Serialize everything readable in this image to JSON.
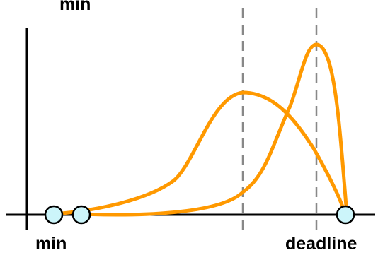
{
  "labels": {
    "top": "min",
    "bottom_left": "min",
    "bottom_right": "deadline"
  },
  "colors": {
    "background": "#ffffff",
    "axis": "#000000",
    "curve": "#ff9900",
    "guide": "#888888",
    "marker_fill": "#ccf5fa",
    "marker_stroke": "#000000",
    "text": "#000000"
  },
  "diagram": {
    "curves": 2,
    "dashed_guides": 2,
    "markers": 3
  }
}
